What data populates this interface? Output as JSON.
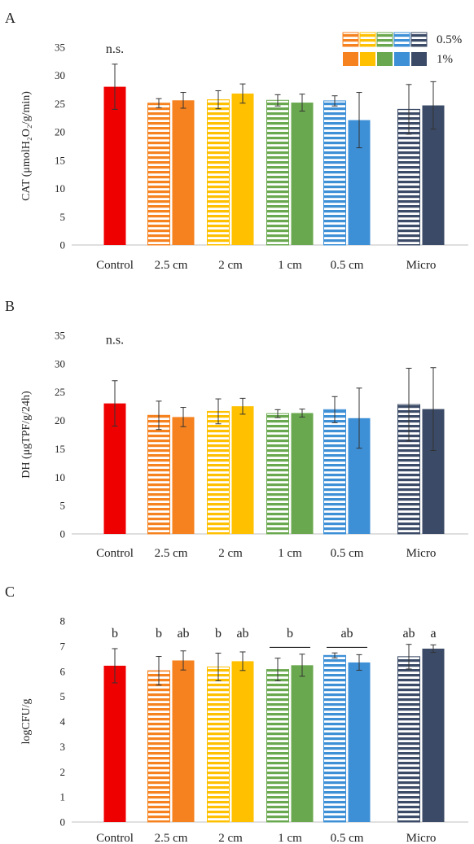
{
  "colors": {
    "Control": "#ee0000",
    "2.5 cm": "#f5821f",
    "2 cm": "#ffc000",
    "1 cm": "#6aa84f",
    "0.5 cm": "#3d8fd6",
    "Micro": "#3b4a66"
  },
  "legend": {
    "entries": [
      {
        "label": "0.5%",
        "pattern": "striped"
      },
      {
        "label": "1%",
        "pattern": "solid"
      }
    ],
    "placement": "top-right"
  },
  "chart_data": [
    {
      "type": "bar",
      "panel": "A",
      "ylabel": "CAT (μmolH₂O₂/g/min)",
      "ylim": [
        0,
        35
      ],
      "yticks": [
        0,
        5,
        10,
        15,
        20,
        25,
        30,
        35
      ],
      "categories": [
        "Control",
        "2.5 cm",
        "2 cm",
        "1 cm",
        "0.5 cm",
        "Micro"
      ],
      "bars": [
        {
          "category": "Control",
          "series": "control",
          "value": 28.0,
          "error": 4.0
        },
        {
          "category": "2.5 cm",
          "series": "0.5%",
          "value": 25.1,
          "error": 0.8
        },
        {
          "category": "2.5 cm",
          "series": "1%",
          "value": 25.6,
          "error": 1.4
        },
        {
          "category": "2 cm",
          "series": "0.5%",
          "value": 25.7,
          "error": 1.6
        },
        {
          "category": "2 cm",
          "series": "1%",
          "value": 26.8,
          "error": 1.7
        },
        {
          "category": "1 cm",
          "series": "0.5%",
          "value": 25.6,
          "error": 1.0
        },
        {
          "category": "1 cm",
          "series": "1%",
          "value": 25.2,
          "error": 1.5
        },
        {
          "category": "0.5 cm",
          "series": "0.5%",
          "value": 25.5,
          "error": 0.9
        },
        {
          "category": "0.5 cm",
          "series": "1%",
          "value": 22.1,
          "error": 4.9
        },
        {
          "category": "Micro",
          "series": "0.5%",
          "value": 24.0,
          "error": 4.4
        },
        {
          "category": "Micro",
          "series": "1%",
          "value": 24.7,
          "error": 4.2
        }
      ],
      "annotations": [
        {
          "text": "n.s.",
          "category": "Control",
          "y": 34
        }
      ],
      "brackets": []
    },
    {
      "type": "bar",
      "panel": "B",
      "ylabel": "DH (μgTPF/g/24h)",
      "ylim": [
        0,
        35
      ],
      "yticks": [
        0,
        5,
        10,
        15,
        20,
        25,
        30,
        35
      ],
      "categories": [
        "Control",
        "2.5 cm",
        "2 cm",
        "1 cm",
        "0.5 cm",
        "Micro"
      ],
      "bars": [
        {
          "category": "Control",
          "series": "control",
          "value": 23.0,
          "error": 4.0
        },
        {
          "category": "2.5 cm",
          "series": "0.5%",
          "value": 20.9,
          "error": 2.5
        },
        {
          "category": "2.5 cm",
          "series": "1%",
          "value": 20.6,
          "error": 1.7
        },
        {
          "category": "2 cm",
          "series": "0.5%",
          "value": 21.6,
          "error": 2.2
        },
        {
          "category": "2 cm",
          "series": "1%",
          "value": 22.5,
          "error": 1.4
        },
        {
          "category": "1 cm",
          "series": "0.5%",
          "value": 21.2,
          "error": 0.7
        },
        {
          "category": "1 cm",
          "series": "1%",
          "value": 21.3,
          "error": 0.7
        },
        {
          "category": "0.5 cm",
          "series": "0.5%",
          "value": 21.9,
          "error": 2.3
        },
        {
          "category": "0.5 cm",
          "series": "1%",
          "value": 20.4,
          "error": 5.3
        },
        {
          "category": "Micro",
          "series": "0.5%",
          "value": 22.8,
          "error": 6.4
        },
        {
          "category": "Micro",
          "series": "1%",
          "value": 22.0,
          "error": 7.3
        }
      ],
      "annotations": [
        {
          "text": "n.s.",
          "category": "Control",
          "y": 33.5
        }
      ],
      "brackets": []
    },
    {
      "type": "bar",
      "panel": "C",
      "ylabel": "logCFU/g",
      "ylim": [
        0,
        8
      ],
      "yticks": [
        0,
        1,
        2,
        3,
        4,
        5,
        6,
        7,
        8
      ],
      "categories": [
        "Control",
        "2.5 cm",
        "2 cm",
        "1 cm",
        "0.5 cm",
        "Micro"
      ],
      "bars": [
        {
          "category": "Control",
          "series": "control",
          "value": 6.22,
          "error": 0.68
        },
        {
          "category": "2.5 cm",
          "series": "0.5%",
          "value": 6.02,
          "error": 0.57
        },
        {
          "category": "2.5 cm",
          "series": "1%",
          "value": 6.43,
          "error": 0.38
        },
        {
          "category": "2 cm",
          "series": "0.5%",
          "value": 6.17,
          "error": 0.55
        },
        {
          "category": "2 cm",
          "series": "1%",
          "value": 6.4,
          "error": 0.37
        },
        {
          "category": "1 cm",
          "series": "0.5%",
          "value": 6.07,
          "error": 0.45
        },
        {
          "category": "1 cm",
          "series": "1%",
          "value": 6.24,
          "error": 0.44
        },
        {
          "category": "0.5 cm",
          "series": "0.5%",
          "value": 6.63,
          "error": 0.1
        },
        {
          "category": "0.5 cm",
          "series": "1%",
          "value": 6.35,
          "error": 0.31
        },
        {
          "category": "Micro",
          "series": "0.5%",
          "value": 6.58,
          "error": 0.49
        },
        {
          "category": "Micro",
          "series": "1%",
          "value": 6.9,
          "error": 0.15
        }
      ],
      "annotations": [
        {
          "text": "b",
          "category": "Control",
          "y": 7.35
        },
        {
          "text": "b",
          "category": "2.5 cm",
          "series": "0.5%",
          "y": 7.35
        },
        {
          "text": "ab",
          "category": "2.5 cm",
          "series": "1%",
          "y": 7.35
        },
        {
          "text": "b",
          "category": "2 cm",
          "series": "0.5%",
          "y": 7.35
        },
        {
          "text": "ab",
          "category": "2 cm",
          "series": "1%",
          "y": 7.35
        },
        {
          "text": "b",
          "category": "1 cm",
          "y": 7.35
        },
        {
          "text": "ab",
          "category": "0.5 cm",
          "y": 7.35
        },
        {
          "text": "ab",
          "category": "Micro",
          "series": "0.5%",
          "y": 7.35
        },
        {
          "text": "a",
          "category": "Micro",
          "series": "1%",
          "y": 7.35
        }
      ],
      "brackets": [
        {
          "category": "1 cm",
          "y": 6.95
        },
        {
          "category": "0.5 cm",
          "y": 6.95
        }
      ]
    }
  ]
}
